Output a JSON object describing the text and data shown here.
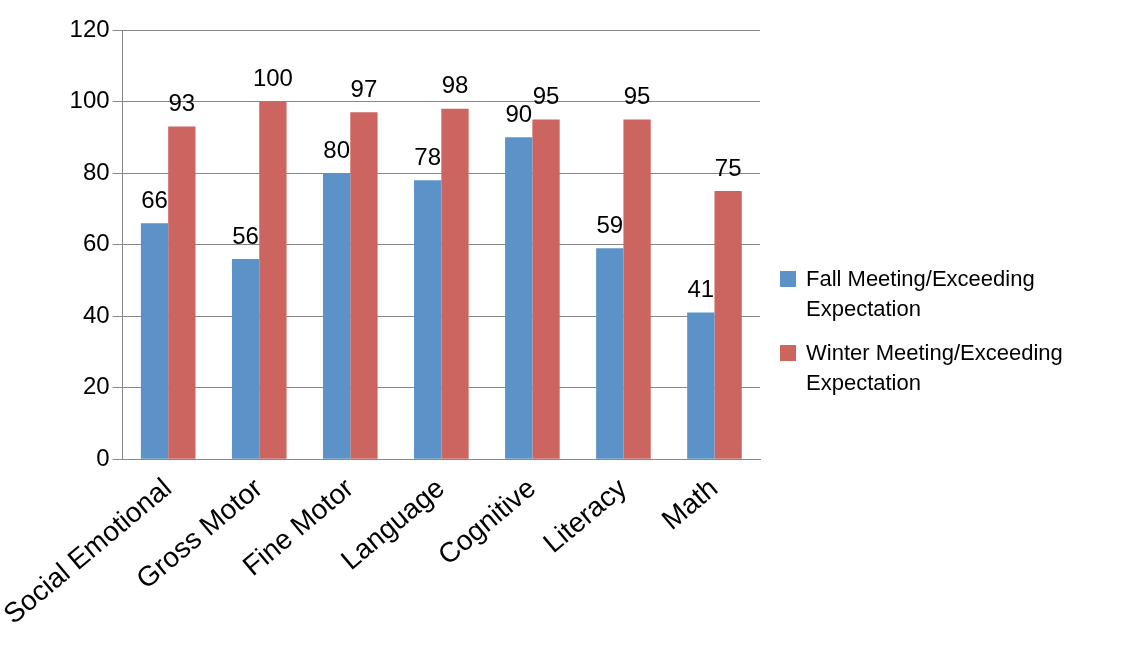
{
  "chart_data": {
    "type": "bar",
    "categories": [
      "Social Emotional",
      "Gross Motor",
      "Fine Motor",
      "Language",
      "Cognitive",
      "Literacy",
      "Math"
    ],
    "series": [
      {
        "name": "Fall Meeting/Exceeding Expectation",
        "color": "#5b93c9",
        "values": [
          66,
          56,
          80,
          78,
          90,
          59,
          41
        ]
      },
      {
        "name": "Winter Meeting/Exceeding Expectation",
        "color": "#cc6560",
        "values": [
          93,
          100,
          97,
          98,
          95,
          95,
          75
        ]
      }
    ],
    "ylim": [
      0,
      120
    ],
    "yticks": [
      0,
      20,
      40,
      60,
      80,
      100,
      120
    ],
    "grid": "y",
    "legend": "right",
    "data_labels": true
  }
}
